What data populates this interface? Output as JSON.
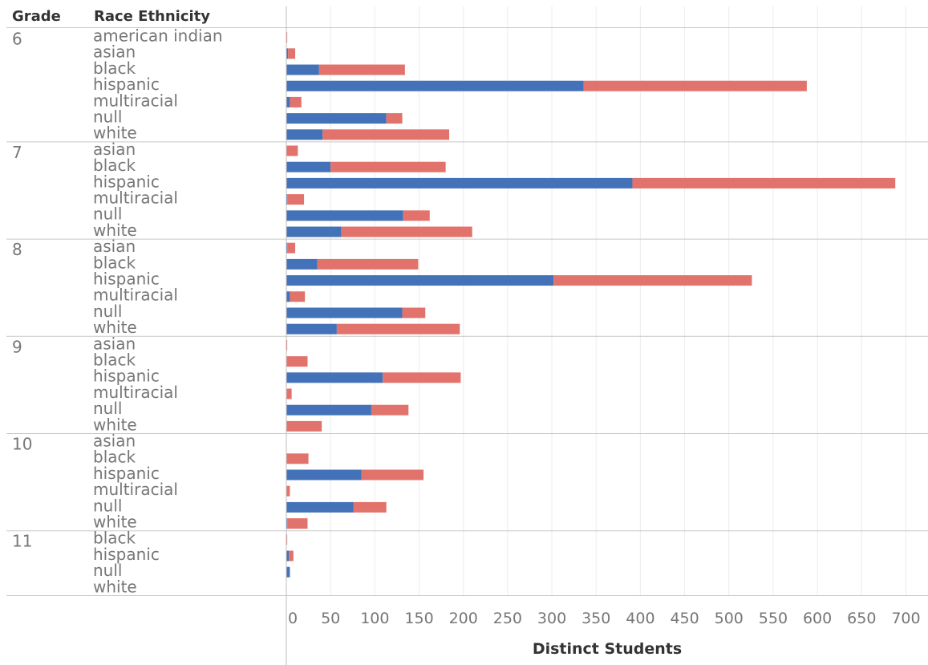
{
  "header": {
    "grade_label": "Grade",
    "race_label": "Race Ethnicity"
  },
  "colors": {
    "series_a": "#4472b8",
    "series_b": "#e2736c"
  },
  "chart_data": {
    "type": "bar",
    "orientation": "horizontal",
    "stacked": true,
    "title": "",
    "xlabel": "Distinct Students",
    "xlim": [
      0,
      700
    ],
    "xticks": [
      0,
      50,
      100,
      150,
      200,
      250,
      300,
      350,
      400,
      450,
      500,
      550,
      600,
      650,
      700
    ],
    "grid": true,
    "groups": [
      {
        "grade": "6",
        "rows": [
          {
            "race": "american indian",
            "a": 0,
            "b": 1
          },
          {
            "race": "asian",
            "a": 2,
            "b": 8
          },
          {
            "race": "black",
            "a": 37,
            "b": 97
          },
          {
            "race": "hispanic",
            "a": 336,
            "b": 252
          },
          {
            "race": "multiracial",
            "a": 4,
            "b": 13
          },
          {
            "race": "null",
            "a": 113,
            "b": 18
          },
          {
            "race": "white",
            "a": 41,
            "b": 143
          }
        ]
      },
      {
        "grade": "7",
        "rows": [
          {
            "race": "asian",
            "a": 0,
            "b": 13
          },
          {
            "race": "black",
            "a": 50,
            "b": 130
          },
          {
            "race": "hispanic",
            "a": 391,
            "b": 297
          },
          {
            "race": "multiracial",
            "a": 1,
            "b": 19
          },
          {
            "race": "null",
            "a": 132,
            "b": 30
          },
          {
            "race": "white",
            "a": 62,
            "b": 148
          }
        ]
      },
      {
        "grade": "8",
        "rows": [
          {
            "race": "asian",
            "a": 1,
            "b": 9
          },
          {
            "race": "black",
            "a": 35,
            "b": 114
          },
          {
            "race": "hispanic",
            "a": 302,
            "b": 224
          },
          {
            "race": "multiracial",
            "a": 4,
            "b": 17
          },
          {
            "race": "null",
            "a": 131,
            "b": 26
          },
          {
            "race": "white",
            "a": 57,
            "b": 139
          }
        ]
      },
      {
        "grade": "9",
        "rows": [
          {
            "race": "asian",
            "a": 0,
            "b": 1
          },
          {
            "race": "black",
            "a": 0,
            "b": 24
          },
          {
            "race": "hispanic",
            "a": 109,
            "b": 88
          },
          {
            "race": "multiracial",
            "a": 0,
            "b": 6
          },
          {
            "race": "null",
            "a": 96,
            "b": 42
          },
          {
            "race": "white",
            "a": 0,
            "b": 40
          }
        ]
      },
      {
        "grade": "10",
        "rows": [
          {
            "race": "asian",
            "a": 0,
            "b": 0
          },
          {
            "race": "black",
            "a": 0,
            "b": 25
          },
          {
            "race": "hispanic",
            "a": 85,
            "b": 70
          },
          {
            "race": "multiracial",
            "a": 0,
            "b": 4
          },
          {
            "race": "null",
            "a": 76,
            "b": 37
          },
          {
            "race": "white",
            "a": 1,
            "b": 23
          }
        ]
      },
      {
        "grade": "11",
        "rows": [
          {
            "race": "black",
            "a": 0,
            "b": 1
          },
          {
            "race": "hispanic",
            "a": 3,
            "b": 5
          },
          {
            "race": "null",
            "a": 4,
            "b": 0
          },
          {
            "race": "white",
            "a": 0,
            "b": 0
          }
        ]
      }
    ]
  }
}
